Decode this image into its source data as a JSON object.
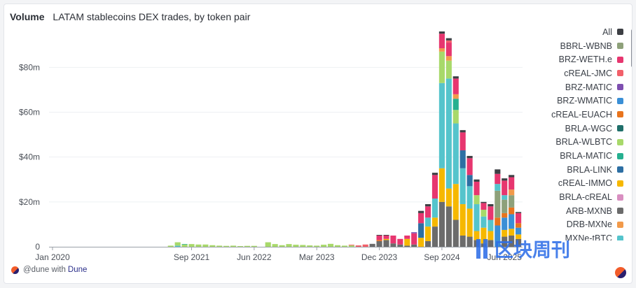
{
  "header": {
    "metric": "Volume",
    "title": "LATAM stablecoins DEX trades, by token pair"
  },
  "footer": {
    "prefix": "@dune with",
    "brand": "Dune"
  },
  "watermark": "区块周刊",
  "legend": [
    {
      "label": "All",
      "color": "#3d3f44"
    },
    {
      "label": "BBRL-WBNB",
      "color": "#8ea17a"
    },
    {
      "label": "BRZ-WETH.e",
      "color": "#e7366f"
    },
    {
      "label": "cREAL-JMC",
      "color": "#f2606a"
    },
    {
      "label": "BRZ-MATIC",
      "color": "#7e4fb0"
    },
    {
      "label": "BRZ-WMATIC",
      "color": "#3a8fd6"
    },
    {
      "label": "cREAL-EUACH",
      "color": "#e8741d"
    },
    {
      "label": "BRLA-WGC",
      "color": "#1f6f6a"
    },
    {
      "label": "BRLA-WLBTC",
      "color": "#a8d96a"
    },
    {
      "label": "BRLA-MATIC",
      "color": "#26b090"
    },
    {
      "label": "BRLA-LINK",
      "color": "#2d6fa3"
    },
    {
      "label": "cREAL-IMMO",
      "color": "#f6b800"
    },
    {
      "label": "BRLA-cREAL",
      "color": "#d98fc1"
    },
    {
      "label": "ARB-MXNB",
      "color": "#6b6b6b"
    },
    {
      "label": "DRB-MXNe",
      "color": "#f29a4a"
    },
    {
      "label": "MXNe-tBTC",
      "color": "#55c4cc"
    }
  ],
  "chart_data": {
    "type": "bar",
    "stacked": true,
    "title": "LATAM stablecoins DEX trades, by token pair",
    "ylabel": "Volume",
    "ylim": [
      0,
      96
    ],
    "y_ticks": [
      {
        "value": 0,
        "label": "0"
      },
      {
        "value": 20,
        "label": "$20m"
      },
      {
        "value": 40,
        "label": "$40m"
      },
      {
        "value": 60,
        "label": "$60m"
      },
      {
        "value": 80,
        "label": "$80m"
      }
    ],
    "x_ticks": [
      {
        "index": 0,
        "label": "Jan 2020"
      },
      {
        "index": 20,
        "label": "Sep 2021"
      },
      {
        "index": 29,
        "label": "Jun 2022"
      },
      {
        "index": 38,
        "label": "Mar 2023"
      },
      {
        "index": 47,
        "label": "Dec 2023"
      },
      {
        "index": 56,
        "label": "Sep 2024"
      },
      {
        "index": 65,
        "label": "Jun 2025"
      }
    ],
    "months": 69,
    "series_names": [
      "ARB-MXNB",
      "cREAL-IMMO",
      "BRZ-WMATIC",
      "cREAL-EUACH",
      "BBRL-WBNB",
      "MXNe-tBTC",
      "BRLA-WGC",
      "BRLA-WLBTC",
      "BRLA-MATIC",
      "BRLA-LINK",
      "BRLA-cREAL",
      "DRB-MXNe",
      "BRZ-WETH.e",
      "cREAL-JMC",
      "BRZ-MATIC",
      "All"
    ],
    "bars": [
      {
        "i": 17,
        "stack": [
          0,
          0,
          0,
          0,
          0,
          0,
          0,
          0.5,
          0,
          0,
          0,
          0,
          0,
          0,
          0,
          0
        ]
      },
      {
        "i": 18,
        "stack": [
          0,
          0,
          0,
          0,
          0,
          0.5,
          0,
          1.5,
          0,
          0,
          0,
          0,
          0,
          0,
          0,
          0
        ]
      },
      {
        "i": 19,
        "stack": [
          0,
          0,
          0,
          0,
          0,
          0,
          0,
          1,
          0.2,
          0,
          0,
          0,
          0,
          0,
          0,
          0
        ]
      },
      {
        "i": 20,
        "stack": [
          0,
          0,
          0,
          0,
          0,
          0,
          0,
          1.2,
          0,
          0,
          0,
          0,
          0,
          0,
          0,
          0
        ]
      },
      {
        "i": 21,
        "stack": [
          0,
          0,
          0,
          0,
          0,
          0,
          0,
          1,
          0,
          0,
          0,
          0,
          0,
          0,
          0,
          0
        ]
      },
      {
        "i": 22,
        "stack": [
          0,
          0,
          0,
          0,
          0,
          0,
          0,
          1,
          0,
          0,
          0,
          0,
          0,
          0,
          0,
          0
        ]
      },
      {
        "i": 23,
        "stack": [
          0,
          0,
          0,
          0,
          0,
          0,
          0,
          0.7,
          0,
          0,
          0,
          0,
          0,
          0,
          0,
          0
        ]
      },
      {
        "i": 24,
        "stack": [
          0,
          0,
          0,
          0,
          0,
          0,
          0,
          0.5,
          0,
          0,
          0,
          0,
          0,
          0,
          0,
          0
        ]
      },
      {
        "i": 25,
        "stack": [
          0,
          0,
          0,
          0,
          0,
          0,
          0,
          0.4,
          0,
          0,
          0,
          0,
          0,
          0,
          0,
          0
        ]
      },
      {
        "i": 26,
        "stack": [
          0,
          0,
          0,
          0,
          0,
          0,
          0,
          0.5,
          0,
          0,
          0,
          0,
          0,
          0,
          0,
          0
        ]
      },
      {
        "i": 27,
        "stack": [
          0,
          0,
          0,
          0,
          0,
          0,
          0,
          0.3,
          0,
          0,
          0,
          0,
          0,
          0,
          0,
          0
        ]
      },
      {
        "i": 28,
        "stack": [
          0,
          0,
          0,
          0,
          0,
          0,
          0,
          0.4,
          0,
          0,
          0,
          0,
          0,
          0,
          0,
          0
        ]
      },
      {
        "i": 29,
        "stack": [
          0,
          0,
          0,
          0,
          0,
          0,
          0,
          0.4,
          0,
          0,
          0,
          0,
          0,
          0,
          0,
          0
        ]
      },
      {
        "i": 31,
        "stack": [
          0,
          0,
          0,
          0,
          0,
          0,
          0,
          2,
          0,
          0,
          0,
          0,
          0,
          0,
          0,
          0
        ]
      },
      {
        "i": 32,
        "stack": [
          0,
          0,
          0,
          0,
          0,
          0,
          0,
          1.2,
          0,
          0,
          0,
          0,
          0,
          0,
          0,
          0
        ]
      },
      {
        "i": 33,
        "stack": [
          0,
          0,
          0,
          0,
          0,
          0,
          0,
          0.7,
          0,
          0,
          0,
          0,
          0,
          0,
          0,
          0
        ]
      },
      {
        "i": 34,
        "stack": [
          0,
          0,
          0,
          0,
          0,
          0,
          0,
          1.2,
          0,
          0,
          0,
          0,
          0,
          0,
          0,
          0
        ]
      },
      {
        "i": 35,
        "stack": [
          0,
          0,
          0,
          0,
          0,
          0,
          0,
          0.9,
          0,
          0,
          0,
          0,
          0,
          0,
          0,
          0
        ]
      },
      {
        "i": 36,
        "stack": [
          0,
          0,
          0,
          0,
          0,
          0,
          0,
          0.8,
          0,
          0,
          0,
          0,
          0,
          0,
          0,
          0
        ]
      },
      {
        "i": 37,
        "stack": [
          0,
          0,
          0,
          0,
          0,
          0,
          0,
          0.6,
          0,
          0,
          0,
          0,
          0,
          0,
          0,
          0
        ]
      },
      {
        "i": 38,
        "stack": [
          0,
          0,
          0,
          0,
          0,
          0,
          0,
          0.5,
          0,
          0,
          0,
          0,
          0,
          0,
          0,
          0
        ]
      },
      {
        "i": 39,
        "stack": [
          0,
          0,
          0,
          0,
          0,
          0,
          0,
          0.9,
          0,
          0,
          0,
          0,
          0,
          0,
          0,
          0
        ]
      },
      {
        "i": 40,
        "stack": [
          0,
          0,
          0,
          0,
          0,
          0,
          0,
          1.3,
          0,
          0,
          0,
          0,
          0,
          0,
          0,
          0
        ]
      },
      {
        "i": 41,
        "stack": [
          0,
          0,
          0,
          0,
          0,
          0,
          0,
          0.7,
          0,
          0,
          0,
          0,
          0,
          0,
          0,
          0
        ]
      },
      {
        "i": 42,
        "stack": [
          0,
          0,
          0,
          0,
          0,
          0,
          0,
          0.5,
          0,
          0,
          0,
          0,
          0,
          0,
          0,
          0
        ]
      },
      {
        "i": 43,
        "stack": [
          0,
          0,
          0,
          0,
          0,
          0,
          0,
          0.6,
          0,
          0,
          0,
          0,
          0,
          0.3,
          0,
          0
        ]
      },
      {
        "i": 44,
        "stack": [
          0,
          0,
          0,
          0,
          0,
          0,
          0,
          0,
          0,
          0,
          0,
          0,
          0,
          0.6,
          0,
          0
        ]
      },
      {
        "i": 45,
        "stack": [
          0,
          0,
          0,
          0,
          0,
          0,
          0,
          0,
          0,
          0,
          0,
          0,
          0,
          1,
          0,
          0
        ]
      },
      {
        "i": 46,
        "stack": [
          1.3,
          0,
          0,
          0,
          0,
          0,
          0,
          0,
          0,
          0,
          0,
          0,
          0,
          0,
          0,
          0
        ]
      },
      {
        "i": 47,
        "stack": [
          2.5,
          0,
          0,
          0.5,
          0,
          0,
          0,
          0,
          0,
          0,
          0,
          0,
          2,
          0,
          0,
          0.3
        ]
      },
      {
        "i": 48,
        "stack": [
          3,
          0.5,
          0,
          0,
          0,
          0,
          0,
          0,
          0,
          0,
          0,
          0,
          1.5,
          0,
          0,
          0.3
        ]
      },
      {
        "i": 49,
        "stack": [
          1.5,
          0,
          0,
          0,
          0,
          0,
          0,
          0,
          0,
          0,
          0,
          0,
          3.5,
          0,
          0,
          0
        ]
      },
      {
        "i": 50,
        "stack": [
          1,
          0,
          0,
          0,
          0,
          0,
          0,
          0,
          0,
          0,
          0,
          0,
          2.5,
          0,
          0,
          0
        ]
      },
      {
        "i": 51,
        "stack": [
          0.5,
          3,
          0,
          0,
          0,
          0,
          0,
          0,
          0,
          0,
          0,
          0,
          1.5,
          0,
          0,
          0
        ]
      },
      {
        "i": 52,
        "stack": [
          1,
          0,
          0,
          0,
          0,
          0,
          0,
          0,
          0,
          0,
          0,
          0,
          5,
          0,
          0.5,
          0
        ]
      },
      {
        "i": 53,
        "stack": [
          0,
          4,
          0,
          0,
          0,
          0,
          0,
          0,
          0,
          6.5,
          0,
          0,
          4.5,
          0,
          0,
          1
        ]
      },
      {
        "i": 54,
        "stack": [
          2.5,
          6.5,
          0,
          0,
          0,
          4,
          0,
          0,
          0,
          0,
          0,
          0,
          5,
          0,
          0,
          1
        ]
      },
      {
        "i": 55,
        "stack": [
          9,
          4,
          0,
          0,
          0,
          8.5,
          0,
          0,
          0,
          0,
          0,
          0,
          10.5,
          0,
          0,
          1
        ]
      },
      {
        "i": 56,
        "stack": [
          20,
          15,
          0,
          0,
          0,
          38,
          0,
          14,
          0,
          0,
          0,
          1.5,
          6.5,
          0,
          0,
          1
        ]
      },
      {
        "i": 57,
        "stack": [
          18,
          8,
          0,
          0,
          0,
          49,
          0,
          8,
          0,
          0,
          0,
          2,
          6,
          1,
          0,
          1
        ]
      },
      {
        "i": 58,
        "stack": [
          12,
          16,
          0,
          0,
          0,
          27,
          0,
          6,
          5,
          0,
          0,
          2,
          7,
          0,
          0,
          1
        ]
      },
      {
        "i": 59,
        "stack": [
          5,
          14,
          0,
          0,
          0,
          16,
          0,
          0,
          0,
          8,
          0,
          0,
          8,
          0,
          0,
          1
        ]
      },
      {
        "i": 60,
        "stack": [
          4.5,
          12.5,
          0,
          0,
          0,
          10,
          0,
          0,
          0,
          5,
          0,
          0,
          7.5,
          0,
          0,
          1
        ]
      },
      {
        "i": 61,
        "stack": [
          3,
          4,
          0,
          0,
          0,
          12,
          0,
          4,
          0,
          0,
          0,
          0,
          6,
          0,
          0,
          1
        ]
      },
      {
        "i": 62,
        "stack": [
          1.5,
          7,
          0,
          0,
          0,
          5,
          0,
          3,
          0,
          0,
          0,
          0,
          3,
          0,
          0,
          0.5
        ]
      },
      {
        "i": 63,
        "stack": [
          3,
          4,
          0,
          0,
          0,
          5,
          0,
          0,
          0,
          0,
          0,
          0,
          6,
          0,
          0,
          1
        ]
      },
      {
        "i": 64,
        "stack": [
          0,
          0,
          9.5,
          3.5,
          12,
          3,
          0,
          0,
          0,
          0,
          0,
          0,
          4.5,
          0,
          0,
          2
        ]
      },
      {
        "i": 65,
        "stack": [
          4.5,
          3,
          5.5,
          2,
          6,
          2,
          0,
          0,
          0,
          0,
          0,
          0,
          6.5,
          0,
          0,
          1
        ]
      },
      {
        "i": 66,
        "stack": [
          5,
          3,
          6.5,
          3,
          5.5,
          0,
          0,
          0,
          0,
          0,
          0,
          2.5,
          5.5,
          0,
          0,
          1
        ]
      },
      {
        "i": 67,
        "stack": [
          3.5,
          2,
          3,
          2,
          0,
          0,
          0,
          0,
          0,
          0,
          0,
          0,
          4.5,
          0,
          0,
          0.5
        ]
      }
    ]
  }
}
